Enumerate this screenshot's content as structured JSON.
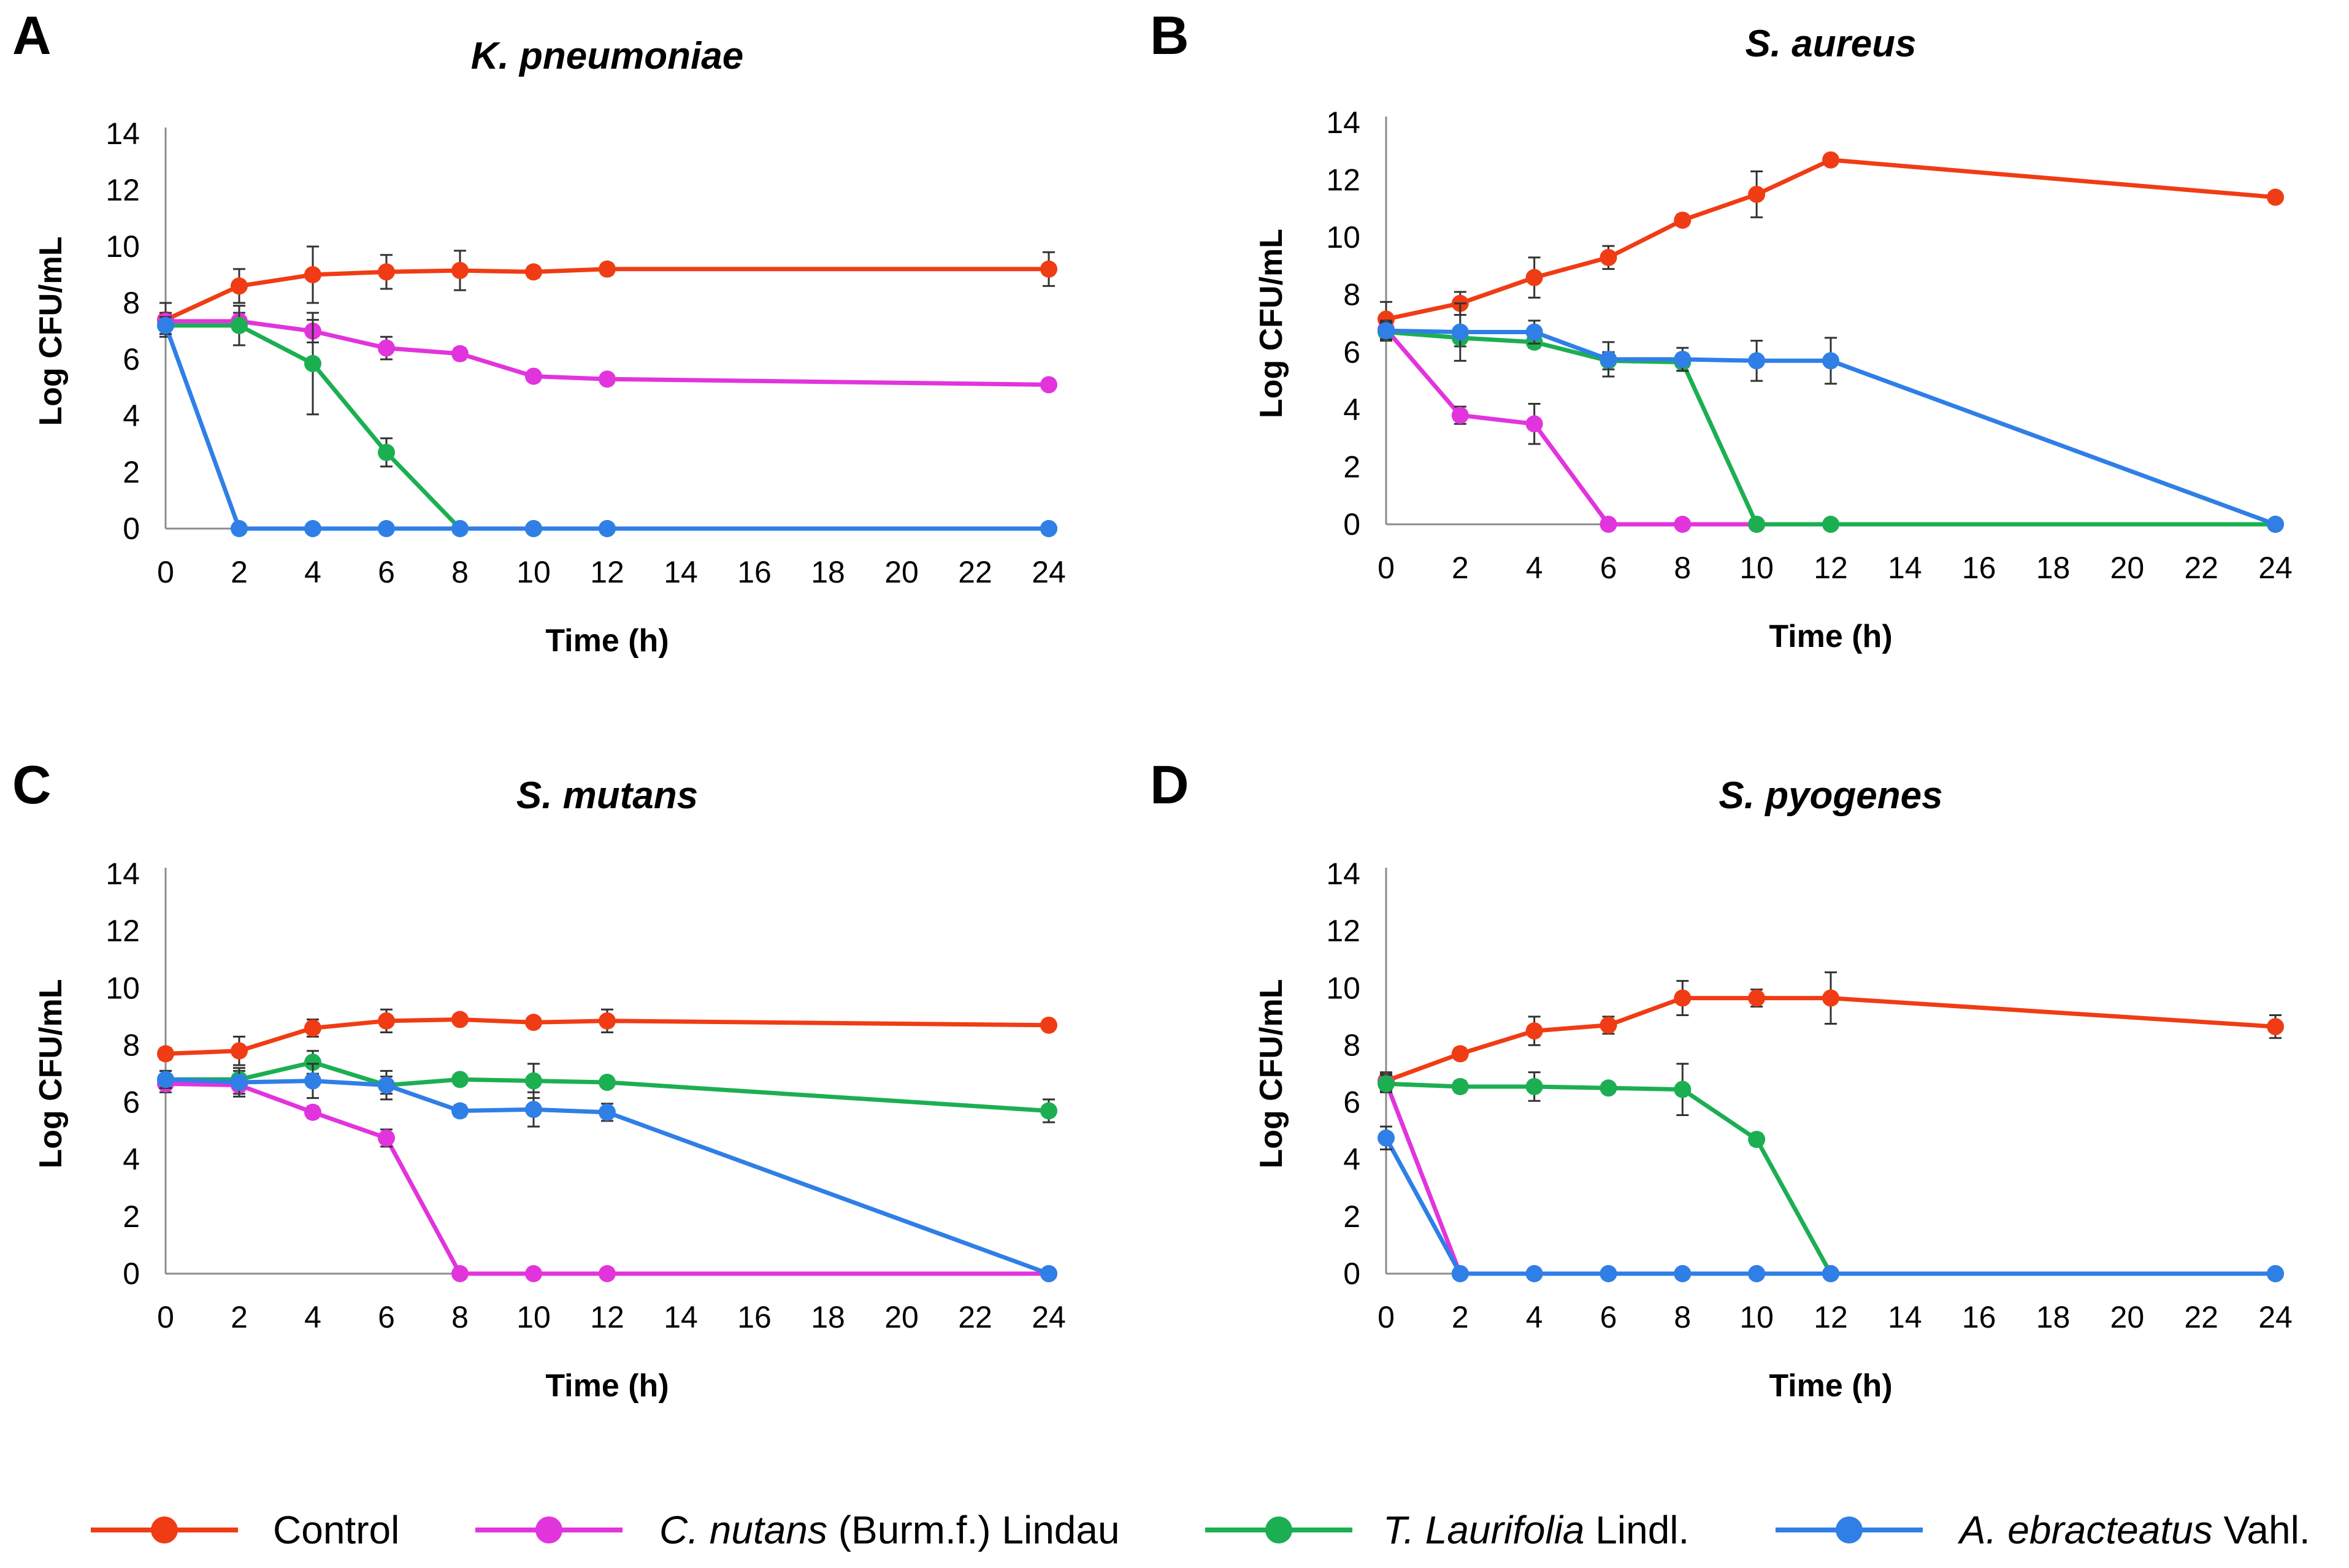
{
  "legend": {
    "items": [
      {
        "name": "Control",
        "italic": "",
        "rest": "Control",
        "color": "#f03c14"
      },
      {
        "name": "C. nutans (Burm.f.) Lindau",
        "italic": "C. nutans",
        "rest": " (Burm.f.) Lindau",
        "color": "#e234dc"
      },
      {
        "name": "T. Laurifolia Lindl.",
        "italic": "T. Laurifolia",
        "rest": " Lindl.",
        "color": "#1caf52"
      },
      {
        "name": "A. ebracteatus Vahl.",
        "italic": "A. ebracteatus",
        "rest": " Vahl.",
        "color": "#2f7fe6"
      }
    ]
  },
  "chart_data": [
    {
      "type": "line",
      "panel": "A",
      "title": "K. pneumoniae",
      "xlabel": "Time (h)",
      "ylabel": "Log CFU/mL",
      "xticks": [
        0,
        2,
        4,
        6,
        8,
        10,
        12,
        14,
        16,
        18,
        20,
        22,
        24
      ],
      "yticks": [
        0,
        2,
        4,
        6,
        8,
        10,
        12,
        14
      ],
      "xlim": [
        0,
        24
      ],
      "ylim": [
        0,
        14
      ],
      "series": [
        {
          "name": "Control",
          "x": [
            0,
            2,
            4,
            6,
            8,
            10,
            12,
            24
          ],
          "values": [
            7.4,
            8.6,
            9.0,
            9.1,
            9.15,
            9.1,
            9.2,
            9.2
          ],
          "errors": [
            0.6,
            0.6,
            1.0,
            0.6,
            0.7,
            0.2,
            0.2,
            0.6
          ]
        },
        {
          "name": "C. nutans (Burm.f.) Lindau",
          "x": [
            0,
            2,
            4,
            6,
            8,
            10,
            12,
            24
          ],
          "values": [
            7.35,
            7.35,
            7.0,
            6.4,
            6.2,
            5.4,
            5.3,
            5.1
          ],
          "errors": [
            0.3,
            0.3,
            0.4,
            0.4,
            0.2,
            0.1,
            0.1,
            0.1
          ]
        },
        {
          "name": "T. Laurifolia Lindl.",
          "x": [
            0,
            2,
            4,
            6,
            8,
            10,
            12,
            24
          ],
          "values": [
            7.2,
            7.2,
            5.85,
            2.7,
            0,
            0,
            0,
            0
          ],
          "errors": [
            0.3,
            0.7,
            1.8,
            0.5,
            0,
            0,
            0,
            0
          ]
        },
        {
          "name": "A. ebracteatus Vahl.",
          "x": [
            0,
            2,
            4,
            6,
            8,
            10,
            12,
            24
          ],
          "values": [
            7.2,
            0,
            0,
            0,
            0,
            0,
            0,
            0
          ],
          "errors": [
            0.3,
            0,
            0,
            0,
            0,
            0,
            0,
            0
          ]
        }
      ]
    },
    {
      "type": "line",
      "panel": "B",
      "title": "S. aureus",
      "xlabel": "Time (h)",
      "ylabel": "Log CFU/mL",
      "xticks": [
        0,
        2,
        4,
        6,
        8,
        10,
        12,
        14,
        16,
        18,
        20,
        22,
        24
      ],
      "yticks": [
        0,
        2,
        4,
        6,
        8,
        10,
        12,
        14
      ],
      "xlim": [
        0,
        24
      ],
      "ylim": [
        0,
        14
      ],
      "series": [
        {
          "name": "Control",
          "x": [
            0,
            2,
            4,
            6,
            8,
            10,
            12,
            24
          ],
          "values": [
            7.15,
            7.7,
            8.6,
            9.3,
            10.6,
            11.5,
            12.7,
            11.4
          ],
          "errors": [
            0.6,
            0.4,
            0.7,
            0.4,
            0.2,
            0.8,
            0.1,
            0.1
          ]
        },
        {
          "name": "C. nutans (Burm.f.) Lindau",
          "x": [
            0,
            2,
            4,
            6,
            8,
            10
          ],
          "values": [
            6.8,
            3.8,
            3.5,
            0,
            0,
            0
          ],
          "errors": [
            0.3,
            0.3,
            0.7,
            0,
            0,
            0
          ]
        },
        {
          "name": "T. Laurifolia Lindl.",
          "x": [
            0,
            2,
            4,
            6,
            8,
            10,
            12,
            24
          ],
          "values": [
            6.7,
            6.5,
            6.35,
            5.7,
            5.65,
            0,
            0,
            0
          ],
          "errors": [
            0.3,
            0.3,
            0.2,
            0.3,
            0.3,
            0,
            0,
            0
          ]
        },
        {
          "name": "A. ebracteatus Vahl.",
          "x": [
            0,
            2,
            4,
            6,
            8,
            10,
            12,
            24
          ],
          "values": [
            6.75,
            6.7,
            6.7,
            5.75,
            5.75,
            5.7,
            5.7,
            0
          ],
          "errors": [
            0.3,
            1.0,
            0.4,
            0.6,
            0.4,
            0.7,
            0.8,
            0
          ]
        }
      ]
    },
    {
      "type": "line",
      "panel": "C",
      "title": "S. mutans",
      "xlabel": "Time (h)",
      "ylabel": "Log CFU/mL",
      "xticks": [
        0,
        2,
        4,
        6,
        8,
        10,
        12,
        14,
        16,
        18,
        20,
        22,
        24
      ],
      "yticks": [
        0,
        2,
        4,
        6,
        8,
        10,
        12,
        14
      ],
      "xlim": [
        0,
        24
      ],
      "ylim": [
        0,
        14
      ],
      "series": [
        {
          "name": "Control",
          "x": [
            0,
            2,
            4,
            6,
            8,
            10,
            12,
            24
          ],
          "values": [
            7.7,
            7.8,
            8.6,
            8.85,
            8.9,
            8.8,
            8.85,
            8.7
          ],
          "errors": [
            0.2,
            0.5,
            0.3,
            0.4,
            0.1,
            0.1,
            0.4,
            0.1
          ]
        },
        {
          "name": "C. nutans (Burm.f.) Lindau",
          "x": [
            0,
            2,
            4,
            6,
            8,
            10,
            12,
            24
          ],
          "values": [
            6.65,
            6.6,
            5.65,
            4.75,
            0,
            0,
            0,
            0
          ],
          "errors": [
            0.3,
            0.3,
            0.2,
            0.3,
            0,
            0,
            0,
            0
          ]
        },
        {
          "name": "T. Laurifolia Lindl.",
          "x": [
            0,
            2,
            4,
            6,
            8,
            10,
            12,
            24
          ],
          "values": [
            6.8,
            6.8,
            7.4,
            6.6,
            6.8,
            6.75,
            6.7,
            5.7
          ],
          "errors": [
            0.3,
            0.3,
            0.4,
            0.3,
            0.1,
            0.6,
            0.1,
            0.4
          ]
        },
        {
          "name": "A. ebracteatus Vahl.",
          "x": [
            0,
            2,
            4,
            6,
            8,
            10,
            12,
            24
          ],
          "values": [
            6.8,
            6.7,
            6.75,
            6.6,
            5.7,
            5.75,
            5.65,
            0
          ],
          "errors": [
            0.3,
            0.5,
            0.6,
            0.5,
            0.2,
            0.6,
            0.3,
            0
          ]
        }
      ]
    },
    {
      "type": "line",
      "panel": "D",
      "title": "S. pyogenes",
      "xlabel": "Time (h)",
      "ylabel": "Log CFU/mL",
      "xticks": [
        0,
        2,
        4,
        6,
        8,
        10,
        12,
        14,
        16,
        18,
        20,
        22,
        24
      ],
      "yticks": [
        0,
        2,
        4,
        6,
        8,
        10,
        12,
        14
      ],
      "xlim": [
        0,
        24
      ],
      "ylim": [
        0,
        14
      ],
      "series": [
        {
          "name": "Control",
          "x": [
            0,
            2,
            4,
            6,
            8,
            10,
            12,
            24
          ],
          "values": [
            6.75,
            7.7,
            8.5,
            8.7,
            9.65,
            9.65,
            9.65,
            8.65
          ],
          "errors": [
            0.3,
            0.2,
            0.5,
            0.3,
            0.6,
            0.3,
            0.9,
            0.4
          ]
        },
        {
          "name": "C. nutans (Burm.f.) Lindau",
          "x": [
            0,
            2,
            4,
            6,
            8,
            10,
            12,
            24
          ],
          "values": [
            6.7,
            0,
            0,
            0,
            0,
            0,
            0,
            0
          ],
          "errors": [
            0.3,
            0,
            0,
            0,
            0,
            0,
            0,
            0
          ]
        },
        {
          "name": "T. Laurifolia Lindl.",
          "x": [
            0,
            2,
            4,
            6,
            8,
            10,
            12,
            24
          ],
          "values": [
            6.65,
            6.55,
            6.55,
            6.5,
            6.45,
            4.7,
            0,
            0
          ],
          "errors": [
            0.3,
            0.2,
            0.5,
            0.1,
            0.9,
            0.2,
            0,
            0
          ]
        },
        {
          "name": "A. ebracteatus Vahl.",
          "x": [
            0,
            2,
            4,
            6,
            8,
            10,
            12,
            24
          ],
          "values": [
            4.75,
            0,
            0,
            0,
            0,
            0,
            0,
            0
          ],
          "errors": [
            0.4,
            0,
            0,
            0,
            0,
            0,
            0,
            0
          ]
        }
      ]
    }
  ]
}
